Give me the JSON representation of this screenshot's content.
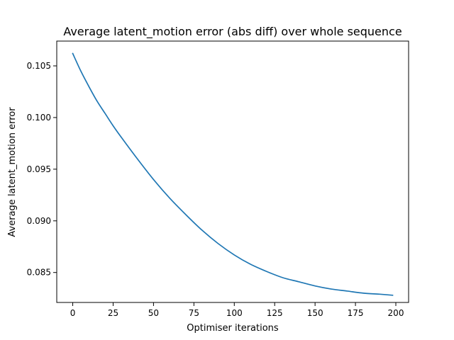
{
  "chart_data": {
    "type": "line",
    "title": "Average latent_motion error (abs diff) over whole sequence",
    "xlabel": "Optimiser iterations",
    "ylabel": "Average latent_motion error",
    "xlim": [
      -9.9,
      207.9
    ],
    "ylim": [
      0.0821,
      0.1074
    ],
    "xticks": [
      0,
      25,
      50,
      75,
      100,
      125,
      150,
      175,
      200
    ],
    "xtick_labels": [
      "0",
      "25",
      "50",
      "75",
      "100",
      "125",
      "150",
      "175",
      "200"
    ],
    "yticks": [
      0.085,
      0.09,
      0.095,
      0.1,
      0.105
    ],
    "ytick_labels": [
      "0.085",
      "0.090",
      "0.095",
      "0.100",
      "0.105"
    ],
    "grid": false,
    "series": [
      {
        "color": "#1f77b4",
        "x": [
          0,
          5,
          10,
          15,
          20,
          25,
          30,
          40,
          50,
          60,
          70,
          80,
          90,
          100,
          110,
          120,
          130,
          140,
          150,
          160,
          170,
          180,
          190,
          198
        ],
        "y": [
          0.1062,
          0.1045,
          0.103,
          0.1016,
          0.1004,
          0.0992,
          0.0981,
          0.096,
          0.094,
          0.0922,
          0.0906,
          0.0891,
          0.0878,
          0.0867,
          0.0858,
          0.0851,
          0.0845,
          0.0841,
          0.0837,
          0.0834,
          0.0832,
          0.083,
          0.0829,
          0.0828
        ]
      }
    ]
  }
}
